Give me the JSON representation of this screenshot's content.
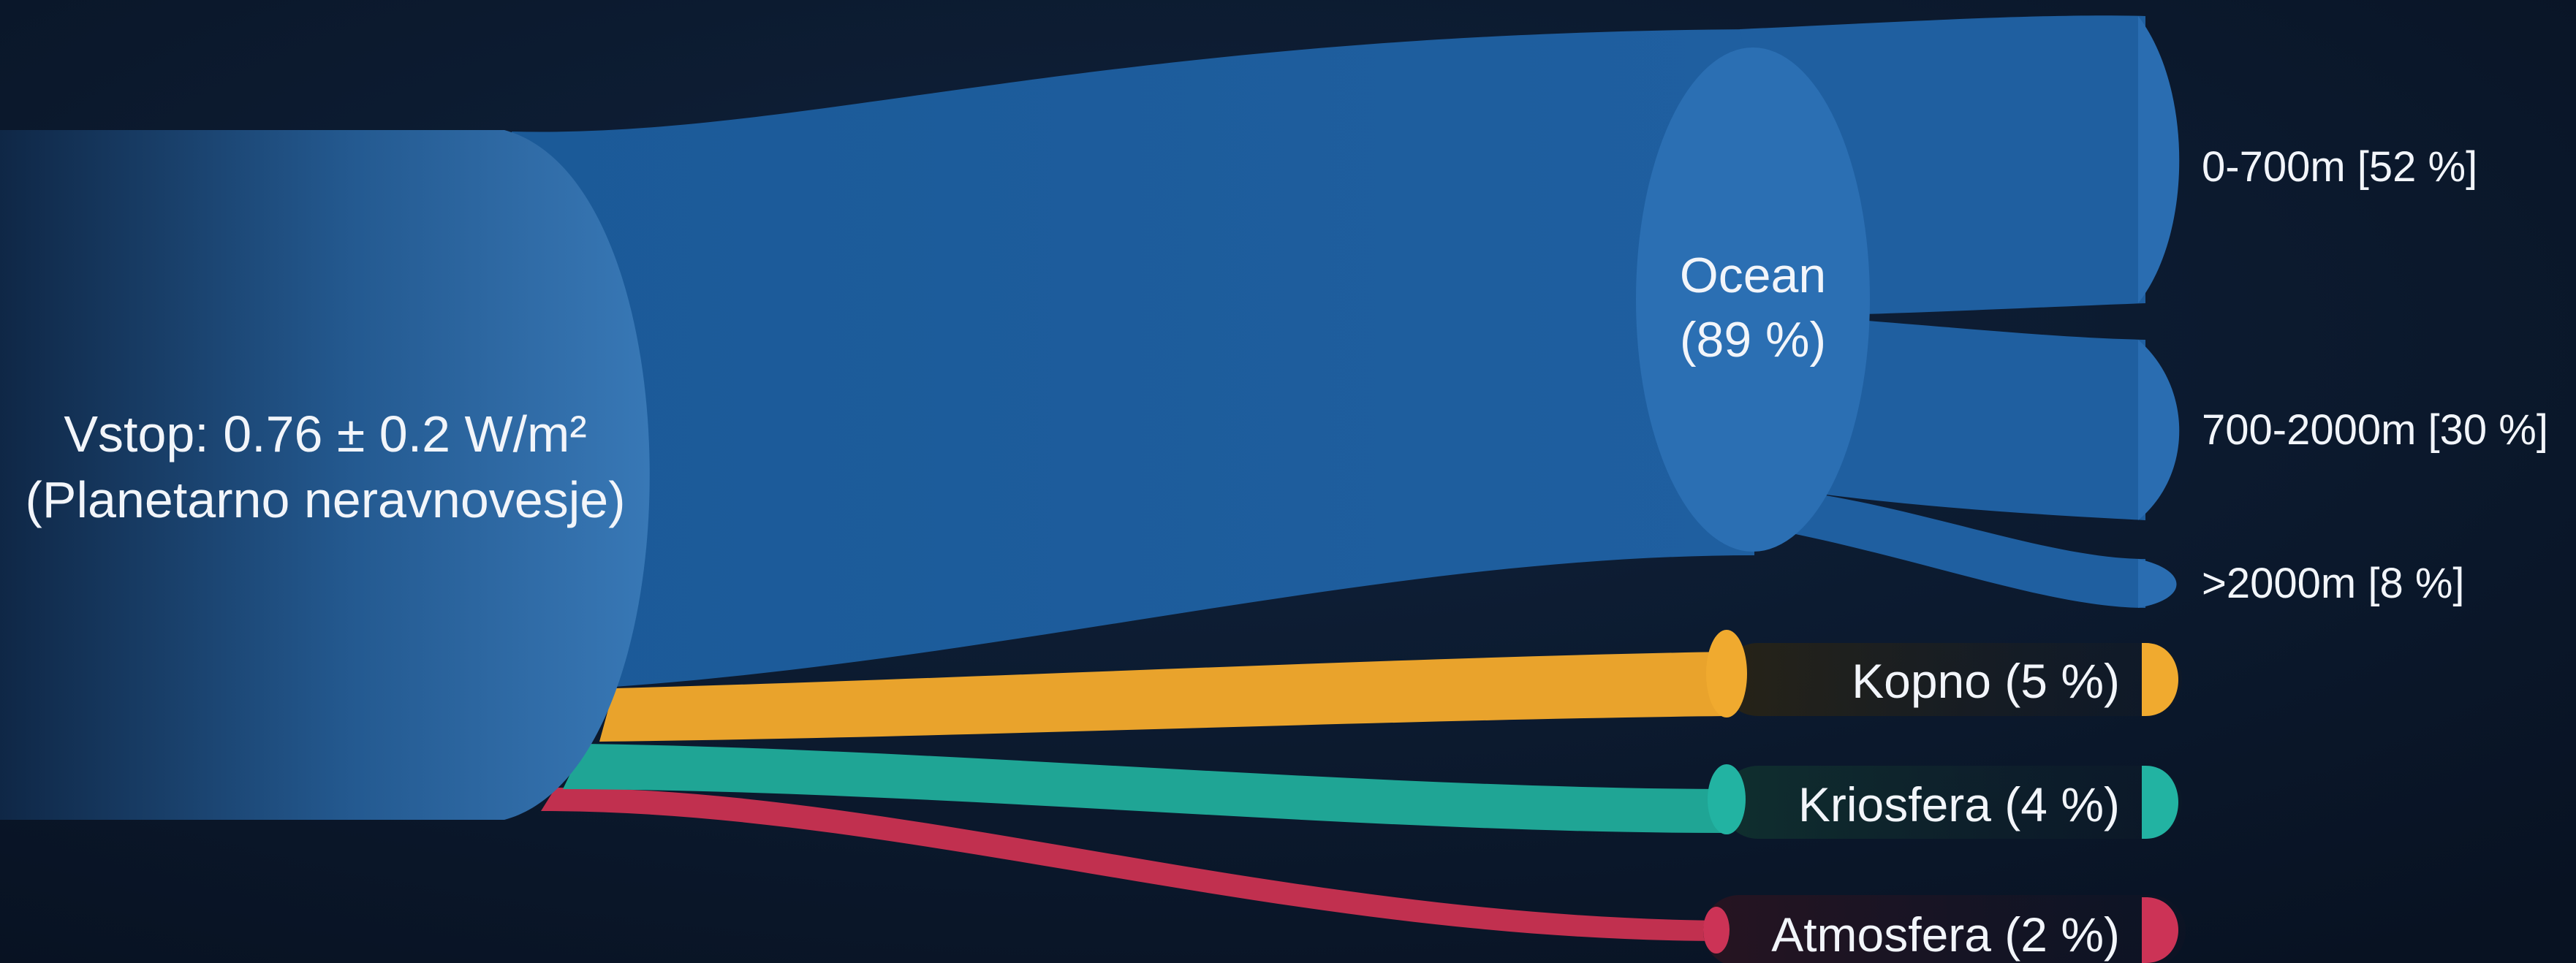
{
  "source": {
    "line1": "Vstop: 0.76 ± 0.2 W/m²",
    "line2": "(Planetarno neravnovesje)"
  },
  "ocean": {
    "line1": "Ocean",
    "line2": "(89 %)",
    "share_percent": 89
  },
  "ocean_layers": [
    {
      "label": "0-700m [52 %]",
      "share_percent": 52
    },
    {
      "label": "700-2000m [30 %]",
      "share_percent": 30
    },
    {
      "label": ">2000m [8 %]",
      "share_percent": 8
    }
  ],
  "sinks": [
    {
      "label": "Kopno (5 %)",
      "share_percent": 5,
      "color": "#e9a32c"
    },
    {
      "label": "Kriosfera (4 %)",
      "share_percent": 4,
      "color": "#1fa595"
    },
    {
      "label": "Atmosfera (2 %)",
      "share_percent": 2,
      "color": "#c1304f"
    }
  ],
  "colors": {
    "background": "#0b1628",
    "ocean": "#1f5fa0",
    "ocean_node": "#2b6fb3",
    "text": "#f2f5fa"
  }
}
